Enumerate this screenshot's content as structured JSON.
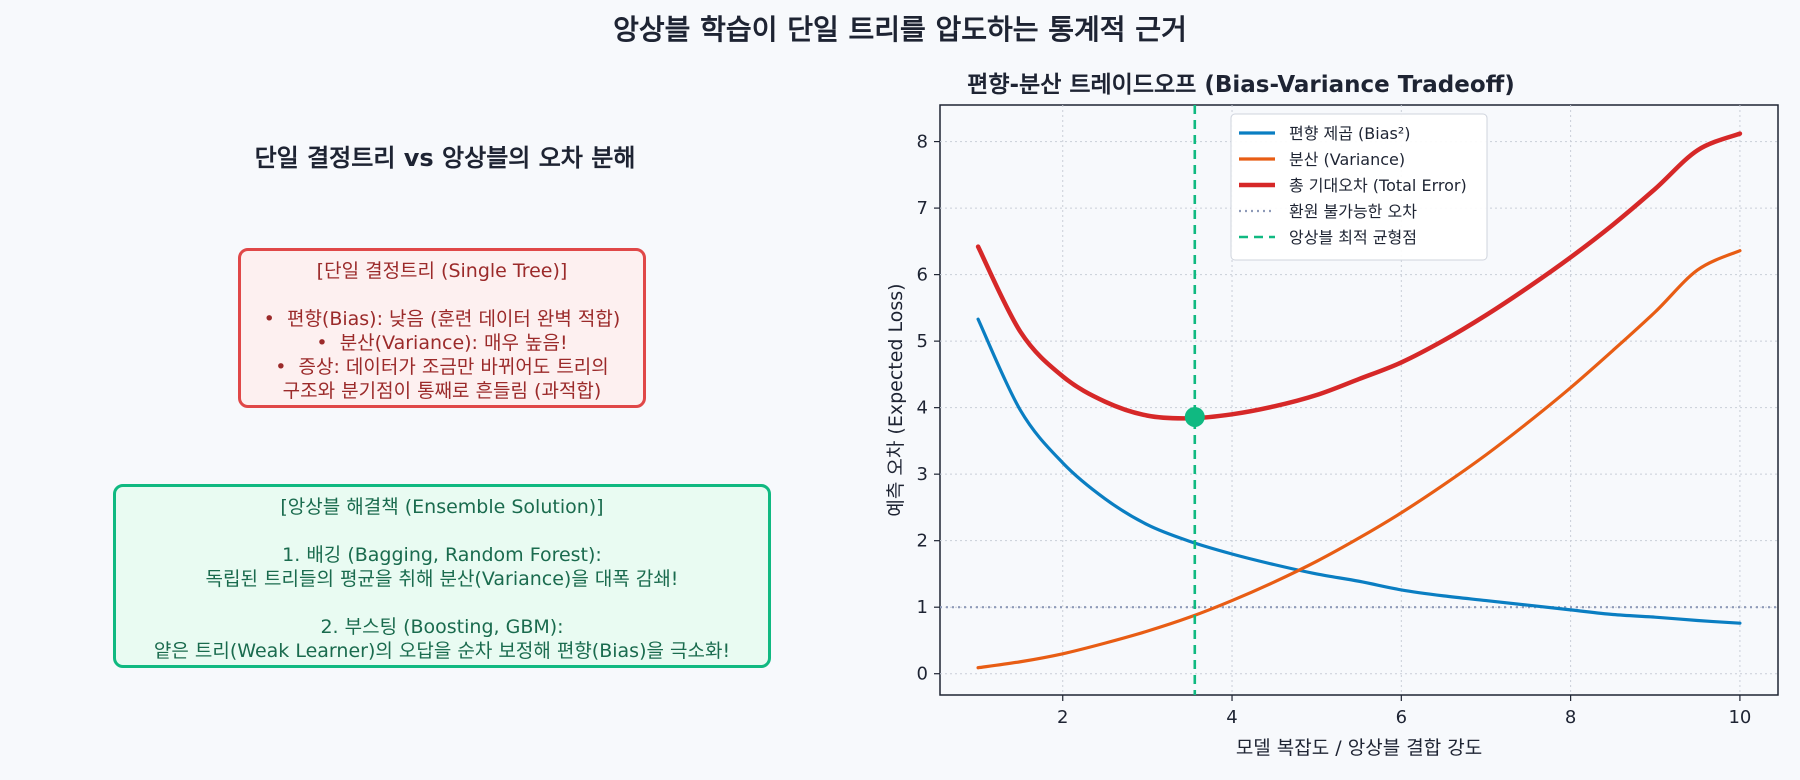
{
  "suptitle": "앙상블 학습이 단일 트리를 압도하는 통계적 근거",
  "left_panel": {
    "title": "단일 결정트리 vs 앙상블의 오차 분해",
    "single_tree_box": {
      "lines": [
        "[단일 결정트리 (Single Tree)]",
        "",
        "•  편향(Bias): 낮음 (훈련 데이터 완벽 적합)",
        "•  분산(Variance): 매우 높음!",
        "•  증상: 데이터가 조금만 바뀌어도 트리의",
        "구조와 분기점이 통째로 흔들림 (과적합)"
      ]
    },
    "ensemble_box": {
      "lines": [
        "[앙상블 해결책 (Ensemble Solution)]",
        "",
        "1. 배깅 (Bagging, Random Forest):",
        "독립된 트리들의 평균을 취해 분산(Variance)을 대폭 감쇄!",
        "",
        "2. 부스팅 (Boosting, GBM):",
        "얕은 트리(Weak Learner)의 오답을 순차 보정해 편향(Bias)을 극소화!"
      ]
    }
  },
  "colors": {
    "bias": "#0a7ec2",
    "variance": "#e85d14",
    "total": "#d62828",
    "irreducible": "#8e9ab8",
    "optimal": "#10b981"
  },
  "chart_data": {
    "type": "line",
    "title": "편향-분산 트레이드오프 (Bias-Variance Tradeoff)",
    "xlabel": "모델 복잡도 / 앙상블 결합 강도",
    "ylabel": "예측 오차 (Expected Loss)",
    "xlim": [
      0.55,
      10.45
    ],
    "ylim": [
      -0.32,
      8.55
    ],
    "xticks": [
      2,
      4,
      6,
      8,
      10
    ],
    "yticks": [
      0,
      1,
      2,
      3,
      4,
      5,
      6,
      7,
      8
    ],
    "grid": true,
    "legend_position": "top-center",
    "x": [
      1,
      1.5,
      2,
      2.5,
      3,
      3.5,
      4,
      4.5,
      5,
      5.5,
      6,
      6.5,
      7,
      7.5,
      8,
      8.5,
      9,
      9.5,
      10
    ],
    "series": [
      {
        "name": "편향 제곱 (Bias²)",
        "key": "bias",
        "values": [
          5.33,
          3.96,
          3.17,
          2.63,
          2.24,
          1.99,
          1.8,
          1.64,
          1.5,
          1.39,
          1.26,
          1.17,
          1.1,
          1.03,
          0.96,
          0.89,
          0.85,
          0.8,
          0.76
        ]
      },
      {
        "name": "분산 (Variance)",
        "key": "variance",
        "values": [
          0.09,
          0.18,
          0.3,
          0.46,
          0.64,
          0.85,
          1.1,
          1.38,
          1.69,
          2.04,
          2.42,
          2.84,
          3.29,
          3.78,
          4.3,
          4.86,
          5.44,
          6.07,
          6.36
        ]
      },
      {
        "name": "총 기대오차 (Total Error)",
        "key": "total",
        "values": [
          6.42,
          5.14,
          4.47,
          4.09,
          3.88,
          3.84,
          3.9,
          4.02,
          4.19,
          4.43,
          4.68,
          5.01,
          5.39,
          5.81,
          6.26,
          6.75,
          7.29,
          7.87,
          8.12
        ]
      },
      {
        "name": "환원 불가능한 오차",
        "key": "irreducible",
        "value": 1.0
      },
      {
        "name": "앙상블 최적 균형점",
        "key": "optimal",
        "value": 3.56
      }
    ],
    "optimal_point": {
      "x": 3.56,
      "y": 3.86
    }
  }
}
